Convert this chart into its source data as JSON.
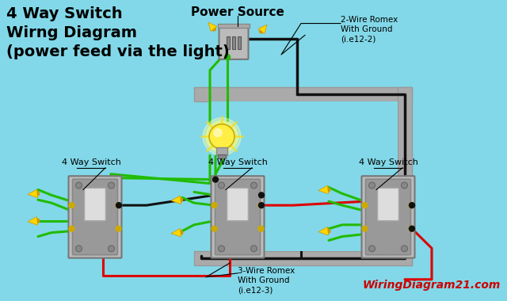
{
  "background_color": "#82D8E8",
  "title_text": "4 Way Switch\nWirng Diagram\n(power feed via the light)",
  "title_fontsize": 14,
  "title_color": "#000000",
  "watermark": "WiringDiagram21.com",
  "watermark_color": "#CC0000",
  "power_source_label": "Power Source",
  "romex_2wire_label": "2-Wire Romex\nWith Ground\n(i.e12-2)",
  "romex_3wire_label": "3-Wire Romex\nWith Ground\n(i.e12-3)",
  "switch_labels": [
    "4 Way Switch",
    "4 Way Switch",
    "4 Way Switch"
  ],
  "wire_green": "#22BB00",
  "wire_black": "#111111",
  "wire_red": "#DD0000",
  "wire_white": "#FFFFFF",
  "switch_body_color": "#AAAAAA",
  "connector_color": "#FFD700",
  "conduit_color": "#AAAAAA",
  "conduit_inner": "#82D8E8"
}
